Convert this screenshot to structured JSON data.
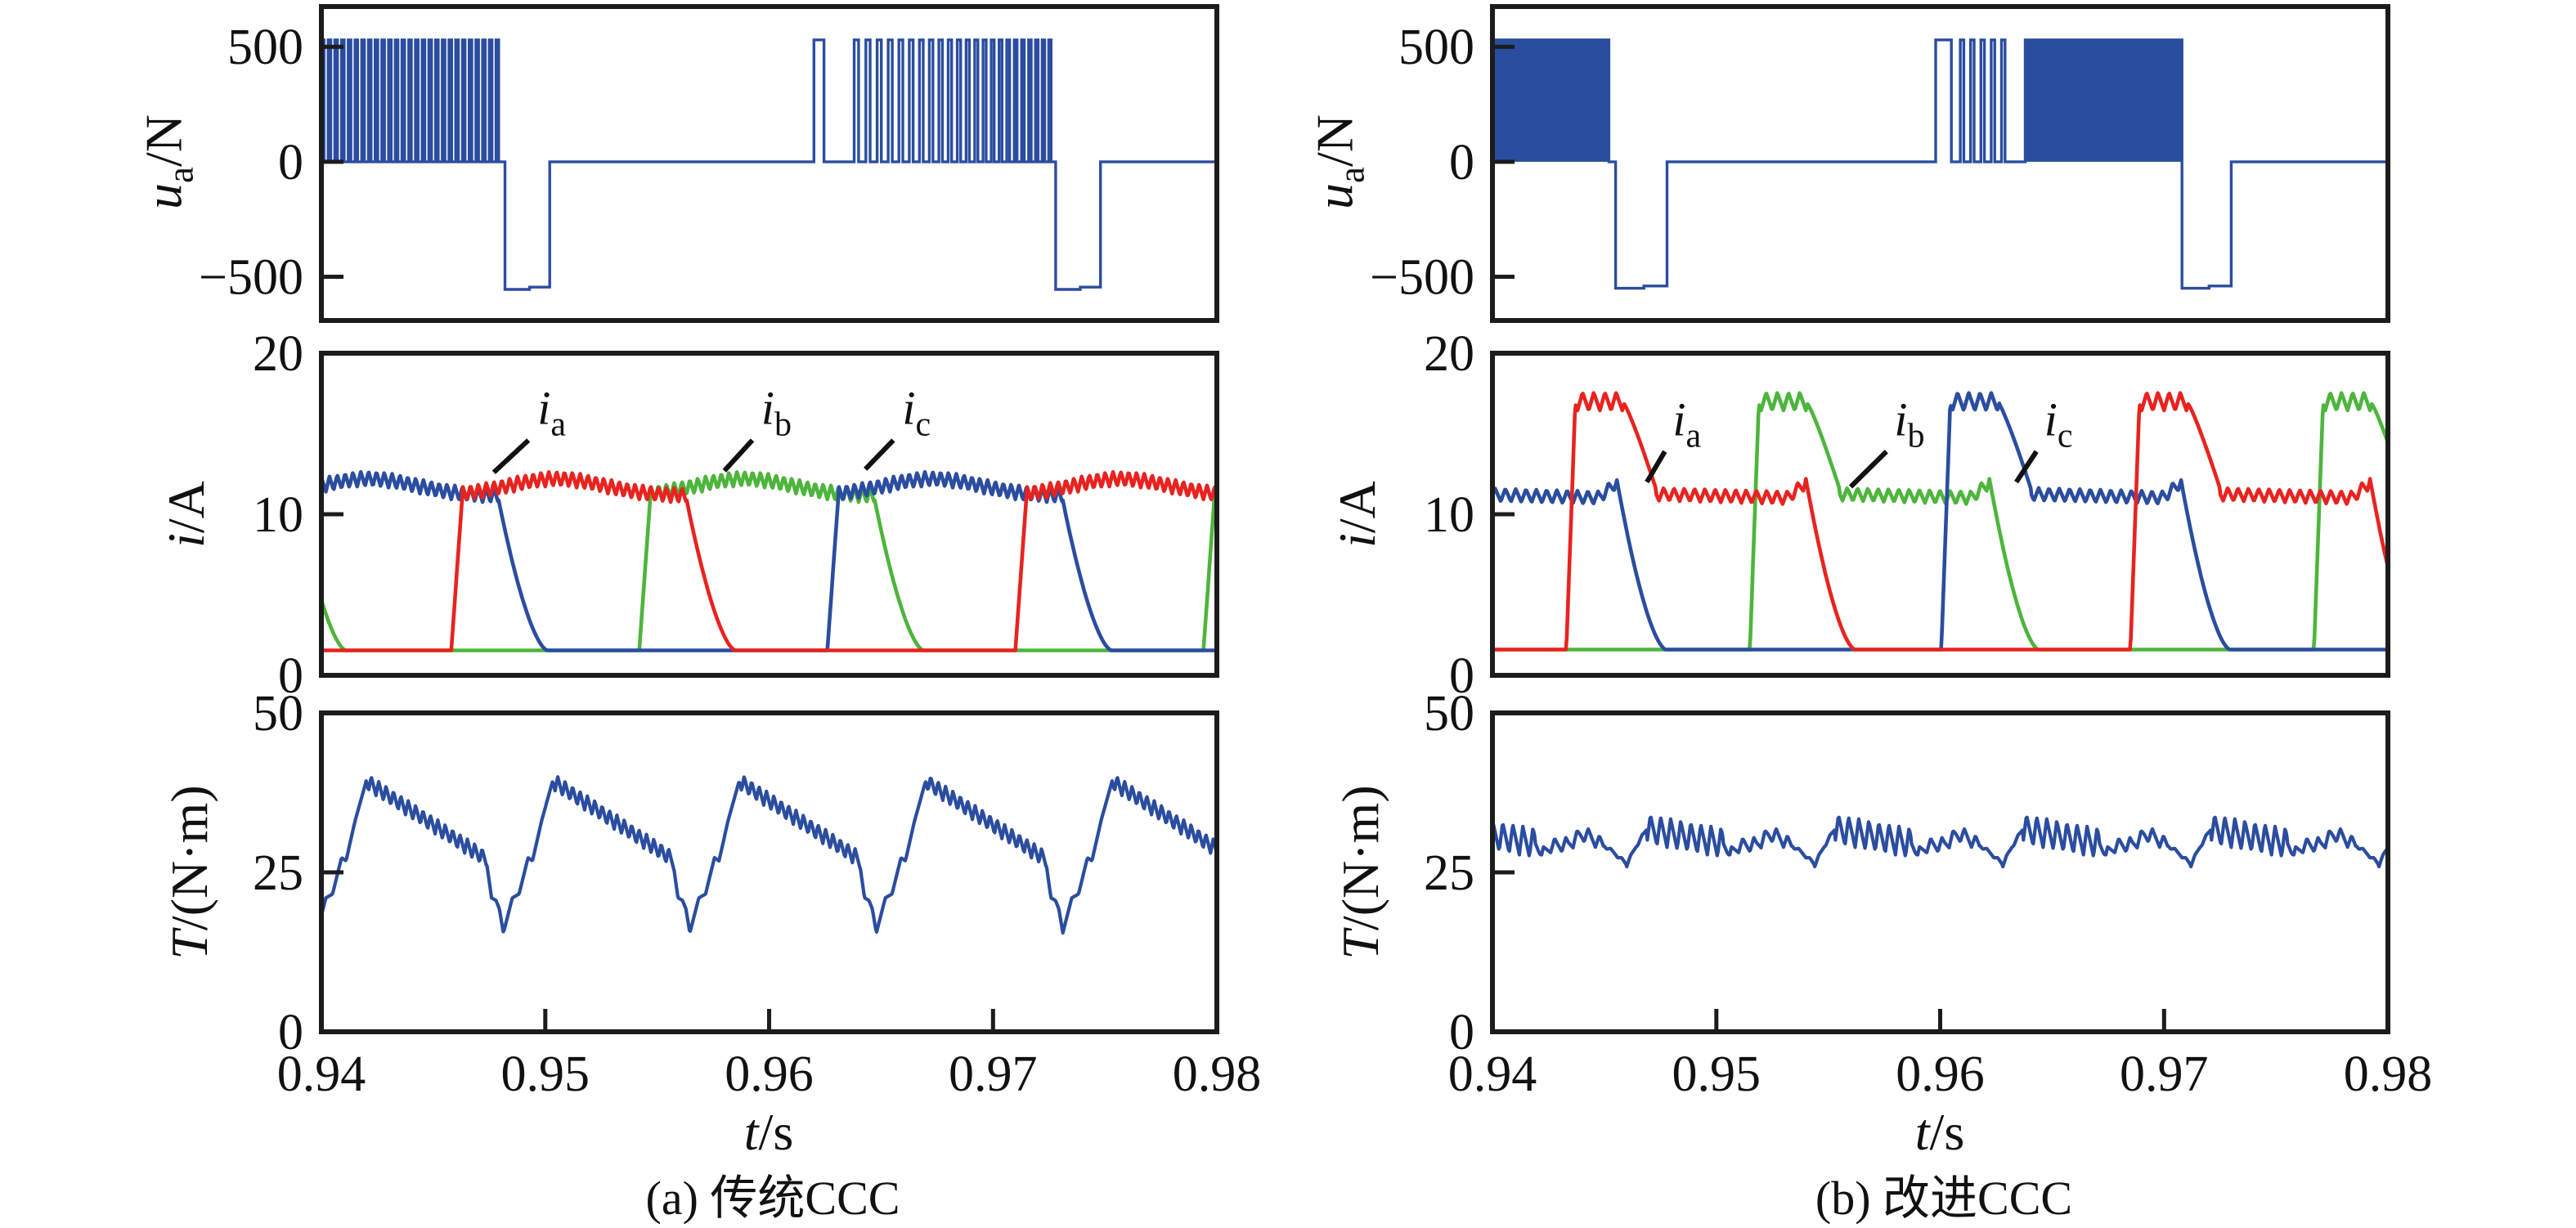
{
  "figure": {
    "captions": [
      {
        "text": "(a) 传统CCC"
      },
      {
        "text": "(b) 改进CCC"
      }
    ],
    "axis_labels": {
      "voltage": {
        "variable": "u",
        "subscript": "a",
        "unit": "/N"
      },
      "current": {
        "variable": "i",
        "subscript": "",
        "unit": "/A"
      },
      "torque": {
        "variable": "T",
        "subscript": "",
        "unit": "/(N·m)"
      },
      "time": {
        "variable": "t",
        "subscript": "",
        "unit": "/s"
      }
    },
    "colors": {
      "blue": "#2b4da0",
      "red": "#e8231f",
      "green": "#4db53c",
      "axis": "#1c1c1c",
      "text": "#111111"
    }
  },
  "chart_data": [
    {
      "panel": "a-voltage",
      "type": "line",
      "column": 0,
      "row": 0,
      "ylabel": "ua/N",
      "xlabel": "t/s",
      "xlim": [
        0.94,
        0.98
      ],
      "ylim": [
        -690,
        675
      ],
      "xticks": [
        0.94,
        0.95,
        0.96,
        0.97,
        0.98
      ],
      "yticks": [
        {
          "v": 500,
          "label": "500"
        },
        {
          "v": 0,
          "label": "0"
        },
        {
          "v": -500,
          "label": "−500"
        }
      ],
      "color": "#2b4da0",
      "waveform": {
        "pulse_top": 530,
        "dip_level": -555,
        "baseline": 0,
        "bursts": [
          {
            "t0": 0.94,
            "t1": 0.948,
            "style": "train",
            "period": 0.0003,
            "duty": 0.4
          },
          {
            "t0": 0.962,
            "t1": 0.9726,
            "style": "train",
            "period": 0.00052,
            "period_end": 0.00028,
            "duty": 0.38,
            "lead_pulse": [
              0.962,
              0.96245
            ],
            "gap_until": 0.9638
          }
        ],
        "dips": [
          [
            0.9482,
            0.9502
          ],
          [
            0.9728,
            0.9748
          ]
        ]
      }
    },
    {
      "panel": "b-voltage",
      "type": "line",
      "column": 1,
      "row": 0,
      "ylabel": "ua/N",
      "xlabel": "t/s",
      "xlim": [
        0.94,
        0.98
      ],
      "ylim": [
        -690,
        675
      ],
      "xticks": [
        0.94,
        0.95,
        0.96,
        0.97,
        0.98
      ],
      "yticks": [
        {
          "v": 500,
          "label": "500"
        },
        {
          "v": 0,
          "label": "0"
        },
        {
          "v": -500,
          "label": "−500"
        }
      ],
      "color": "#2b4da0",
      "waveform": {
        "pulse_top": 530,
        "dip_level": -550,
        "baseline": 0,
        "bursts": [
          {
            "t0": 0.94,
            "t1": 0.9452,
            "style": "solid"
          },
          {
            "t0": 0.9598,
            "t1": 0.9632,
            "style": "train",
            "period": 0.00046,
            "duty": 0.34,
            "lead_pulse": [
              0.9598,
              0.9605
            ],
            "gap_until": 0.9609
          },
          {
            "t0": 0.9638,
            "t1": 0.9708,
            "style": "solid"
          }
        ],
        "dips": [
          [
            0.9455,
            0.9478
          ],
          [
            0.9708,
            0.973
          ]
        ]
      }
    },
    {
      "panel": "a-current",
      "type": "line",
      "column": 0,
      "row": 1,
      "ylabel": "i/A",
      "xlabel": "t/s",
      "xlim": [
        0.94,
        0.98
      ],
      "ylim": [
        0,
        20
      ],
      "xticks": [
        0.94,
        0.95,
        0.96,
        0.97,
        0.98
      ],
      "yticks": [
        {
          "v": 20,
          "label": "20"
        },
        {
          "v": 10,
          "label": "10"
        },
        {
          "v": 0,
          "label": "0"
        }
      ],
      "mode": "a",
      "phase_shape": {
        "rise": 0.0005,
        "on_dur": 0.0105,
        "decay": 0.0022,
        "start_level": 11.2,
        "chop_base": 11.15,
        "chop_hump": 1.05,
        "ripple_amp": 0.45,
        "ripple_period": 0.00035,
        "floor": 1.55,
        "decay_from": 11.0
      },
      "series": [
        {
          "name": "ib",
          "color": "#4db53c",
          "on_times": [
            0.9284,
            0.9542,
            0.9794
          ]
        },
        {
          "name": "ic",
          "color": "#2b4da0",
          "on_times": [
            0.9374,
            0.9626
          ]
        },
        {
          "name": "ia",
          "color": "#e8231f",
          "on_times": [
            0.9458,
            0.971
          ]
        }
      ],
      "annotations": [
        {
          "main": "i",
          "sub": "a",
          "tx": 0.94965,
          "ty": 15.6,
          "x1": 0.94925,
          "y1": 14.6,
          "x2": 0.9477,
          "y2": 12.6
        },
        {
          "main": "i",
          "sub": "b",
          "tx": 0.95965,
          "ty": 15.6,
          "x1": 0.95925,
          "y1": 14.6,
          "x2": 0.958,
          "y2": 12.7
        },
        {
          "main": "i",
          "sub": "c",
          "tx": 0.96595,
          "ty": 15.6,
          "x1": 0.96555,
          "y1": 14.6,
          "x2": 0.9643,
          "y2": 12.8
        }
      ]
    },
    {
      "panel": "b-current",
      "type": "line",
      "column": 1,
      "row": 1,
      "ylabel": "i/A",
      "xlabel": "t/s",
      "xlim": [
        0.94,
        0.98
      ],
      "ylim": [
        0,
        20
      ],
      "xticks": [
        0.94,
        0.95,
        0.96,
        0.97,
        0.98
      ],
      "yticks": [
        {
          "v": 20,
          "label": "20"
        },
        {
          "v": 10,
          "label": "10"
        },
        {
          "v": 0,
          "label": "0"
        }
      ],
      "mode": "b",
      "phase_shape": {
        "rise": 0.0004,
        "on_dur": 0.0107,
        "decay": 0.0022,
        "start_level": 16.9,
        "high_level": 17.0,
        "high_end": 0.0026,
        "ramp_end": 0.004,
        "low_level": 11.25,
        "high_ripple": 0.55,
        "low_ripple": 0.4,
        "ripple_period": 0.00046,
        "floor": 1.6,
        "decay_from": 12.2,
        "end_bump": 1.0
      },
      "series": [
        {
          "name": "ib",
          "color": "#4db53c",
          "on_times": [
            0.9263,
            0.9515,
            0.9767
          ]
        },
        {
          "name": "ic",
          "color": "#2b4da0",
          "on_times": [
            0.93485,
            0.96005
          ]
        },
        {
          "name": "ia",
          "color": "#e8231f",
          "on_times": [
            0.9433,
            0.9685
          ]
        }
      ],
      "annotations": [
        {
          "main": "i",
          "sub": "a",
          "tx": 0.94805,
          "ty": 14.9,
          "x1": 0.9477,
          "y1": 13.9,
          "x2": 0.9469,
          "y2": 12.0
        },
        {
          "main": "i",
          "sub": "b",
          "tx": 0.95795,
          "ty": 14.9,
          "x1": 0.9576,
          "y1": 13.9,
          "x2": 0.956,
          "y2": 11.7
        },
        {
          "main": "i",
          "sub": "c",
          "tx": 0.96465,
          "ty": 14.9,
          "x1": 0.9643,
          "y1": 13.9,
          "x2": 0.9634,
          "y2": 12.0
        }
      ]
    },
    {
      "panel": "a-torque",
      "type": "line",
      "column": 0,
      "row": 2,
      "ylabel": "T/(N·m)",
      "xlabel": "t/s",
      "xlim": [
        0.94,
        0.98
      ],
      "ylim": [
        0,
        50
      ],
      "xticks": [
        0.94,
        0.95,
        0.96,
        0.97,
        0.98
      ],
      "xtick_labels": [
        "0.94",
        "0.95",
        "0.96",
        "0.97",
        "0.98"
      ],
      "yticks": [
        {
          "v": 50,
          "label": "50"
        },
        {
          "v": 25,
          "label": "25"
        },
        {
          "v": 0,
          "label": "0"
        }
      ],
      "color": "#2b4da0",
      "torque": {
        "kind": "sawtooth",
        "t_dip0": 0.9398,
        "period": 0.00833,
        "min": 15.5,
        "peak": 39.3,
        "decay_end": 27.0,
        "ripple_amp": 1.25,
        "ripple_period": 0.00033,
        "base_points": [
          [
            0,
            15.5
          ],
          [
            0.0004,
            21.0
          ],
          [
            0.0007,
            21.6
          ],
          [
            0.0011,
            27.3
          ],
          [
            0.0013,
            26.8
          ],
          [
            0.0017,
            33.0
          ],
          [
            0.0022,
            39.3
          ]
        ],
        "tail_points": [
          [
            0.0076,
            26.0
          ],
          [
            0.0078,
            21.0
          ],
          [
            0.008,
            20.6
          ],
          [
            0.00815,
            19.3
          ],
          [
            0.00833,
            15.5
          ]
        ]
      }
    },
    {
      "panel": "b-torque",
      "type": "line",
      "column": 1,
      "row": 2,
      "ylabel": "T/(N·m)",
      "xlabel": "t/s",
      "xlim": [
        0.94,
        0.98
      ],
      "ylim": [
        0,
        50
      ],
      "xticks": [
        0.94,
        0.95,
        0.96,
        0.97,
        0.98
      ],
      "xtick_labels": [
        "0.94",
        "0.95",
        "0.96",
        "0.97",
        "0.98"
      ],
      "yticks": [
        {
          "v": 50,
          "label": "50"
        },
        {
          "v": 25,
          "label": "25"
        },
        {
          "v": 0,
          "label": "0"
        }
      ],
      "color": "#2b4da0",
      "torque": {
        "kind": "ripple",
        "t_dip0": 0.9376,
        "period": 0.0084,
        "min": 26.2,
        "max": 34.2,
        "mean": 30,
        "base_points": [
          [
            0,
            26.2
          ],
          [
            0.0004,
            29.0
          ],
          [
            0.0009,
            31.8
          ],
          [
            0.0043,
            29.6
          ],
          [
            0.0046,
            27.6
          ],
          [
            0.005,
            29.2
          ],
          [
            0.0058,
            29.4
          ],
          [
            0.0063,
            30.8
          ],
          [
            0.0066,
            30.9
          ],
          [
            0.0074,
            29.2
          ],
          [
            0.008,
            27.6
          ],
          [
            0.0084,
            26.2
          ]
        ],
        "burst": {
          "u0": 0.0009,
          "u1": 0.0043,
          "amp": 2.3,
          "period": 0.00045
        },
        "mid": {
          "u0": 0.0046,
          "u1": 0.0074,
          "amp": 1.1,
          "period": 0.0005
        },
        "calm_amp": 0.3
      }
    }
  ]
}
